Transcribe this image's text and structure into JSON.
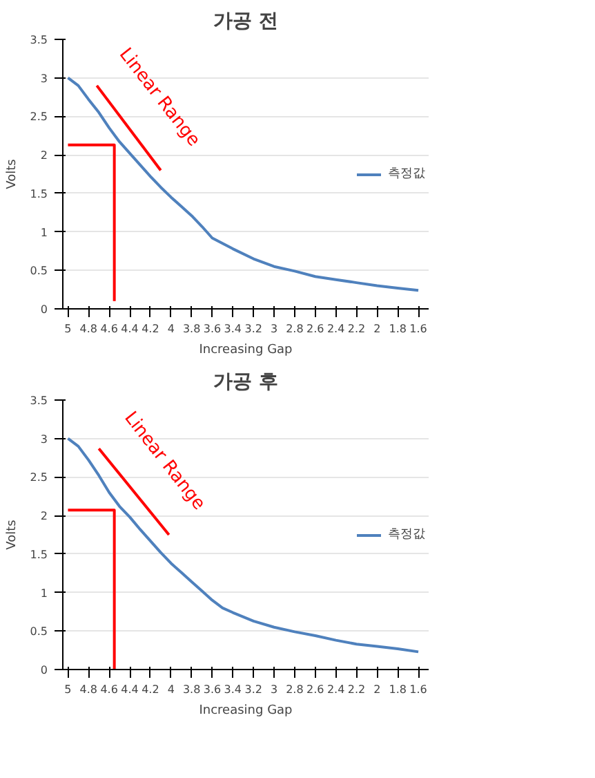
{
  "chart_data": [
    {
      "type": "line",
      "title": "가공 전",
      "xlabel": "Increasing Gap",
      "ylabel": "Volts",
      "xlim": [
        5.05,
        1.5
      ],
      "xticks": [
        5,
        4.8,
        4.6,
        4.4,
        4.2,
        4,
        3.8,
        3.6,
        3.4,
        3.2,
        3,
        2.8,
        2.6,
        2.4,
        2.2,
        2,
        1.8,
        1.6
      ],
      "ylim": [
        0,
        3.5
      ],
      "yticks": [
        0,
        0.5,
        1,
        1.5,
        2,
        2.5,
        3,
        3.5
      ],
      "grid": "y",
      "legend": "right",
      "series": [
        {
          "name": "측정값",
          "color": "#4f81bd",
          "x": [
            5,
            4.9,
            4.8,
            4.7,
            4.6,
            4.5,
            4.4,
            4.3,
            4.2,
            4.1,
            4.0,
            3.9,
            3.8,
            3.7,
            3.6,
            3.5,
            3.4,
            3.2,
            3.0,
            2.8,
            2.6,
            2.4,
            2.2,
            2.0,
            1.8,
            1.6
          ],
          "values": [
            3.0,
            2.9,
            2.72,
            2.55,
            2.35,
            2.17,
            2.02,
            1.87,
            1.72,
            1.58,
            1.45,
            1.33,
            1.21,
            1.07,
            0.92,
            0.85,
            0.78,
            0.65,
            0.55,
            0.49,
            0.42,
            0.38,
            0.34,
            0.3,
            0.27,
            0.24
          ]
        },
        {
          "color": "#ff0000",
          "x": [
            5.0,
            4.55,
            4.55
          ],
          "values": [
            2.13,
            2.13,
            0.1
          ]
        },
        {
          "color": "#ff0000",
          "x": [
            4.72,
            4.1
          ],
          "values": [
            2.9,
            1.8
          ]
        }
      ],
      "annotations": [
        "Linear Range"
      ]
    },
    {
      "type": "line",
      "title": "가공 후",
      "xlabel": "Increasing Gap",
      "ylabel": "Volts",
      "xlim": [
        5.05,
        1.5
      ],
      "xticks": [
        5,
        4.8,
        4.6,
        4.4,
        4.2,
        4,
        3.8,
        3.6,
        3.4,
        3.2,
        3,
        2.8,
        2.6,
        2.4,
        2.2,
        2,
        1.8,
        1.6
      ],
      "ylim": [
        0,
        3.5
      ],
      "yticks": [
        0,
        0.5,
        1,
        1.5,
        2,
        2.5,
        3,
        3.5
      ],
      "grid": "y",
      "legend": "right",
      "series": [
        {
          "name": "측정값",
          "color": "#4f81bd",
          "x": [
            5,
            4.9,
            4.8,
            4.7,
            4.6,
            4.5,
            4.4,
            4.3,
            4.2,
            4.1,
            4.0,
            3.9,
            3.8,
            3.7,
            3.6,
            3.5,
            3.4,
            3.2,
            3.0,
            2.8,
            2.6,
            2.4,
            2.2,
            2.0,
            1.8,
            1.6
          ],
          "values": [
            3.0,
            2.9,
            2.72,
            2.52,
            2.3,
            2.12,
            1.98,
            1.82,
            1.67,
            1.52,
            1.38,
            1.26,
            1.14,
            1.02,
            0.9,
            0.8,
            0.74,
            0.63,
            0.55,
            0.49,
            0.44,
            0.38,
            0.33,
            0.3,
            0.27,
            0.23
          ]
        },
        {
          "color": "#ff0000",
          "x": [
            5.0,
            4.55,
            4.55
          ],
          "values": [
            2.07,
            2.07,
            0.0
          ]
        },
        {
          "color": "#ff0000",
          "x": [
            4.7,
            4.02
          ],
          "values": [
            2.87,
            1.75
          ]
        }
      ],
      "annotations": [
        "Linear Range"
      ]
    }
  ]
}
